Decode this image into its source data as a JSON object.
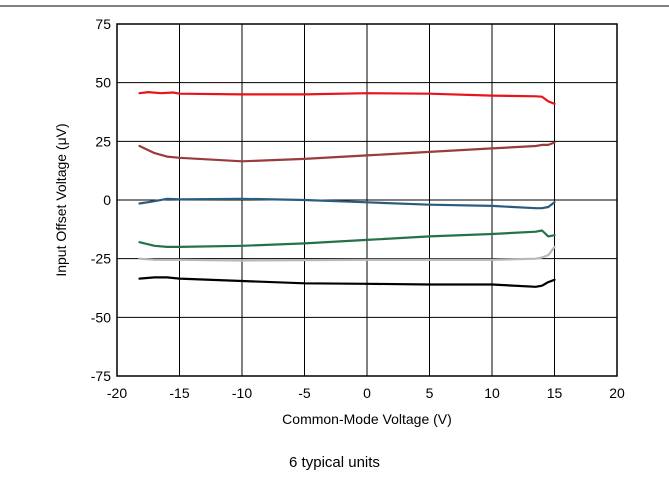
{
  "chart_data": {
    "type": "line",
    "title": "",
    "caption": "6 typical units",
    "xlabel": "Common-Mode Voltage (V)",
    "ylabel": "Input Offset Voltage (μV)",
    "xlim": [
      -20,
      20
    ],
    "ylim": [
      -75,
      75
    ],
    "xticks": [
      -20,
      -15,
      -10,
      -5,
      0,
      5,
      10,
      15,
      20
    ],
    "yticks": [
      -75,
      -50,
      -25,
      0,
      25,
      50,
      75
    ],
    "grid": true,
    "legend": "none",
    "series": [
      {
        "color": "#e8141c",
        "x": [
          -18.2,
          -17.5,
          -16.5,
          -15.5,
          -15,
          -10,
          -5,
          0,
          5,
          10,
          13.5,
          14,
          14.5,
          15
        ],
        "y": [
          45.5,
          46,
          45.5,
          45.8,
          45.3,
          45,
          45,
          45.5,
          45.3,
          44.5,
          44.2,
          44,
          42,
          41
        ]
      },
      {
        "color": "#9b3b3b",
        "x": [
          -18.2,
          -17,
          -16,
          -15,
          -10,
          -5,
          0,
          5,
          10,
          13.5,
          14,
          14.5,
          15
        ],
        "y": [
          23,
          20,
          18.5,
          18,
          16.5,
          17.5,
          19,
          20.5,
          22,
          23,
          23.5,
          23.5,
          24.5
        ]
      },
      {
        "color": "#2b5c7e",
        "x": [
          -18.2,
          -17,
          -16,
          -15,
          -10,
          -5,
          0,
          5,
          10,
          13.5,
          14,
          14.5,
          15
        ],
        "y": [
          -1.5,
          -0.5,
          0.5,
          0.3,
          0.5,
          0,
          -1,
          -2,
          -2.5,
          -3.5,
          -3.5,
          -3,
          -1
        ]
      },
      {
        "color": "#247249",
        "x": [
          -18.2,
          -17,
          -16,
          -15,
          -10,
          -5,
          0,
          5,
          10,
          13.5,
          14,
          14.5,
          15
        ],
        "y": [
          -18,
          -19.5,
          -20,
          -20,
          -19.5,
          -18.5,
          -17,
          -15.5,
          -14.5,
          -13.5,
          -13,
          -15.5,
          -15
        ]
      },
      {
        "color": "#b8b8b8",
        "x": [
          -18.2,
          -17,
          -16,
          -15,
          -10,
          -5,
          0,
          5,
          10,
          13.5,
          14,
          14.5,
          15
        ],
        "y": [
          -25,
          -25.5,
          -25.5,
          -25.5,
          -25.8,
          -25.6,
          -25.5,
          -25.5,
          -25.5,
          -25,
          -24.5,
          -23.5,
          -20
        ]
      },
      {
        "color": "#000000",
        "x": [
          -18.2,
          -17,
          -16,
          -15,
          -10,
          -5,
          0,
          5,
          10,
          13.5,
          14,
          14.5,
          15
        ],
        "y": [
          -33.5,
          -33,
          -33,
          -33.5,
          -34.5,
          -35.5,
          -35.7,
          -36,
          -36,
          -37,
          -36.5,
          -35,
          -34
        ]
      }
    ]
  }
}
